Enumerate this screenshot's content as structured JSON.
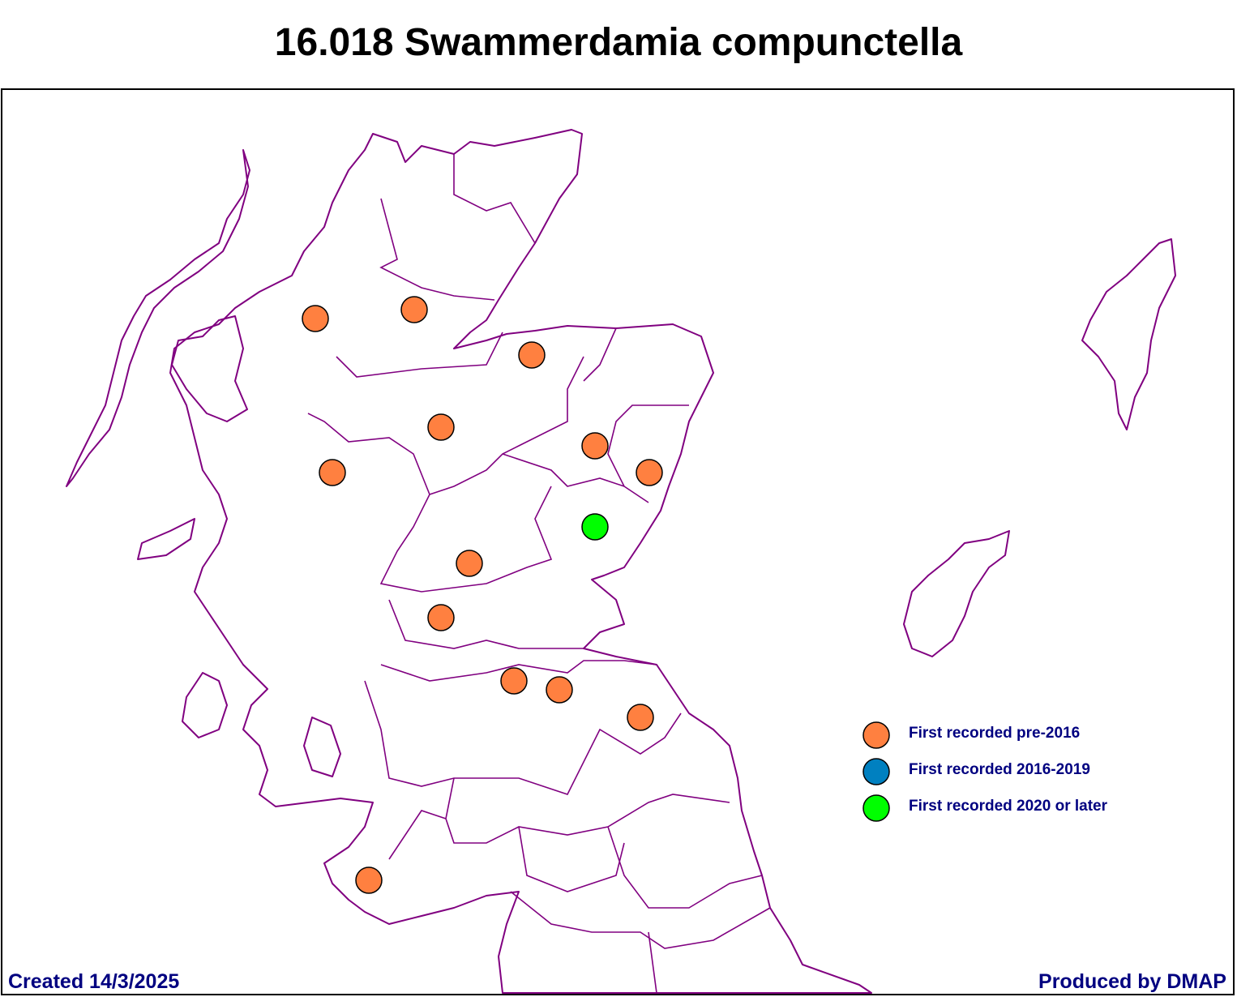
{
  "title": "16.018 Swammerdamia compunctella",
  "legend": {
    "items": [
      {
        "label": "First recorded pre-2016",
        "color": "#ff8040"
      },
      {
        "label": "First recorded 2016-2019",
        "color": "#0080c0"
      },
      {
        "label": "First recorded 2020 or later",
        "color": "#00ff00"
      }
    ]
  },
  "footer": {
    "created": "Created 14/3/2025",
    "produced": "Produced by DMAP"
  }
}
